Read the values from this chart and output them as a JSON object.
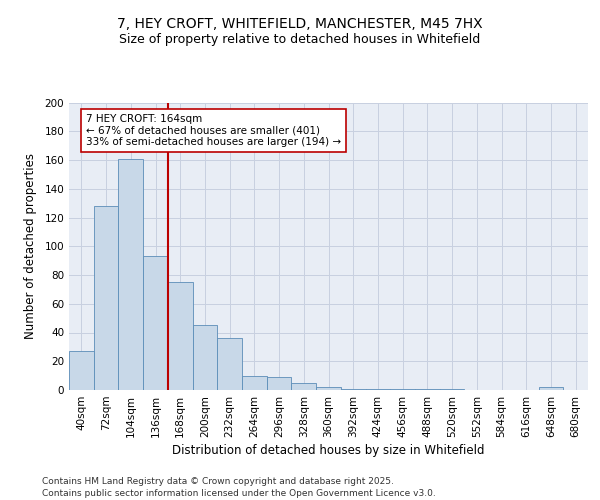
{
  "title_line1": "7, HEY CROFT, WHITEFIELD, MANCHESTER, M45 7HX",
  "title_line2": "Size of property relative to detached houses in Whitefield",
  "xlabel": "Distribution of detached houses by size in Whitefield",
  "ylabel": "Number of detached properties",
  "categories": [
    "40sqm",
    "72sqm",
    "104sqm",
    "136sqm",
    "168sqm",
    "200sqm",
    "232sqm",
    "264sqm",
    "296sqm",
    "328sqm",
    "360sqm",
    "392sqm",
    "424sqm",
    "456sqm",
    "488sqm",
    "520sqm",
    "552sqm",
    "584sqm",
    "616sqm",
    "648sqm",
    "680sqm"
  ],
  "values": [
    27,
    128,
    161,
    93,
    75,
    45,
    36,
    10,
    9,
    5,
    2,
    1,
    1,
    1,
    1,
    1,
    0,
    0,
    0,
    2,
    0
  ],
  "bar_color": "#c8d8e8",
  "bar_edge_color": "#5b8db8",
  "vline_x": 3.5,
  "vline_color": "#bb0000",
  "annotation_text": "7 HEY CROFT: 164sqm\n← 67% of detached houses are smaller (401)\n33% of semi-detached houses are larger (194) →",
  "annotation_box_color": "#ffffff",
  "annotation_box_edge": "#bb0000",
  "ylim": [
    0,
    200
  ],
  "yticks": [
    0,
    20,
    40,
    60,
    80,
    100,
    120,
    140,
    160,
    180,
    200
  ],
  "grid_color": "#c8d0e0",
  "bg_color": "#e8edf5",
  "footer": "Contains HM Land Registry data © Crown copyright and database right 2025.\nContains public sector information licensed under the Open Government Licence v3.0.",
  "title_fontsize": 10,
  "subtitle_fontsize": 9,
  "tick_fontsize": 7.5,
  "label_fontsize": 8.5,
  "footer_fontsize": 6.5
}
